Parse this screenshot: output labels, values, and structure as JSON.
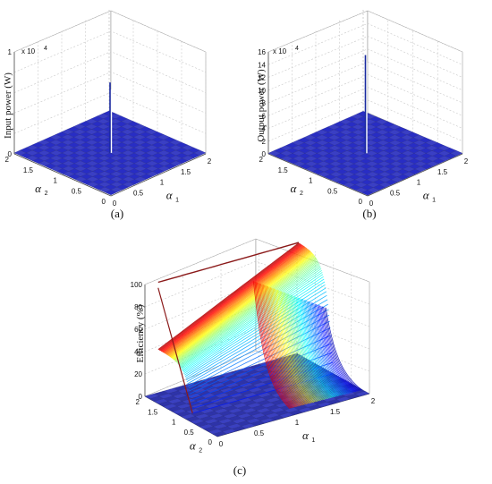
{
  "chart_data": [
    {
      "type": "surface3d",
      "caption": "(a)",
      "zlabel": "Input power (W)",
      "zexponent_label": "x 10",
      "zexponent": "4",
      "xlabel_symbol": "α",
      "xlabel_sub": "1",
      "ylabel_symbol": "α",
      "ylabel_sub": "2",
      "xlim": [
        0,
        2
      ],
      "ylim": [
        0,
        2
      ],
      "zlim": [
        0,
        10
      ],
      "x_ticks": [
        "0",
        "0.5",
        "1",
        "1.5",
        "2"
      ],
      "y_ticks": [
        "0",
        "0.5",
        "1",
        "1.5",
        "2"
      ],
      "z_ticks": [
        "0",
        "2",
        "4",
        "6",
        "8",
        "10"
      ],
      "z_tick_labels": [
        "0",
        "",
        "",
        "",
        "",
        "1"
      ],
      "grid": true,
      "surface_level": 0.1,
      "spike": {
        "x": 1,
        "y": 1,
        "value": 7.0
      },
      "colors": {
        "surface": "#3a3fbf",
        "spike": "#1a2aa0",
        "grid": "#c8c8c8"
      }
    },
    {
      "type": "surface3d",
      "caption": "(b)",
      "zlabel": "Output power (W)",
      "zexponent_label": "x 10",
      "zexponent": "4",
      "xlabel_symbol": "α",
      "xlabel_sub": "1",
      "ylabel_symbol": "α",
      "ylabel_sub": "2",
      "xlim": [
        0,
        2
      ],
      "ylim": [
        0,
        2
      ],
      "zlim": [
        0,
        16
      ],
      "x_ticks": [
        "0",
        "0.5",
        "1",
        "1.5",
        "2"
      ],
      "y_ticks": [
        "0",
        "0.5",
        "1",
        "1.5",
        "2"
      ],
      "z_ticks": [
        "0",
        "2",
        "4",
        "6",
        "8",
        "10",
        "12",
        "14",
        "16"
      ],
      "z_tick_labels": [
        "0",
        "2",
        "4",
        "6",
        "8",
        "10",
        "12",
        "14",
        "16"
      ],
      "grid": true,
      "surface_level": 0.1,
      "spike": {
        "x": 1,
        "y": 1,
        "value": 15.5
      },
      "colors": {
        "surface": "#3a3fbf",
        "spike": "#1a2aa0",
        "grid": "#c8c8c8"
      }
    },
    {
      "type": "surface3d",
      "caption": "(c)",
      "zlabel": "Efficiency (%)",
      "xlabel_symbol": "α",
      "xlabel_sub": "1",
      "ylabel_symbol": "α",
      "ylabel_sub": "2",
      "xlim": [
        0,
        2
      ],
      "ylim": [
        0,
        2
      ],
      "zlim": [
        0,
        100
      ],
      "x_ticks": [
        "0",
        "0.5",
        "1",
        "1.5",
        "2"
      ],
      "y_ticks": [
        "0",
        "0.5",
        "1",
        "1.5",
        "2"
      ],
      "z_ticks": [
        "0",
        "20",
        "40",
        "60",
        "80",
        "100"
      ],
      "z_tick_labels": [
        "0",
        "20",
        "40",
        "60",
        "80",
        "100"
      ],
      "grid": true,
      "plateau_value": 100,
      "colors": {
        "low": "#3a3fbf",
        "high": "#8b1a1a",
        "grid": "#c8c8c8"
      }
    }
  ]
}
